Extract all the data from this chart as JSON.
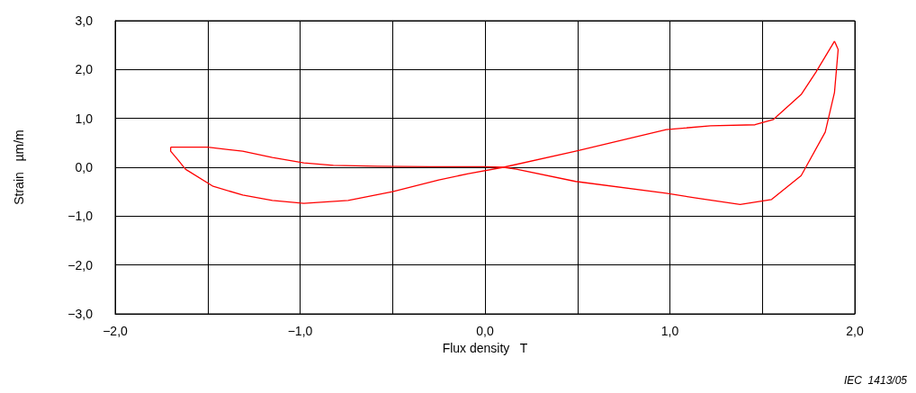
{
  "chart_data": {
    "type": "line",
    "xlabel": "Flux density   T",
    "ylabel": "Strain   µm/m",
    "annotations": [
      "IEC  1413/05"
    ],
    "xlim": [
      -2,
      2
    ],
    "xticks": [
      {
        "value": -2,
        "label": "−2,0"
      },
      {
        "value": -1.5,
        "label": null
      },
      {
        "value": -1,
        "label": "−1,0"
      },
      {
        "value": -0.5,
        "label": null
      },
      {
        "value": 0,
        "label": "0,0"
      },
      {
        "value": 0.5,
        "label": null
      },
      {
        "value": 1,
        "label": "1,0"
      },
      {
        "value": 1.5,
        "label": null
      },
      {
        "value": 2,
        "label": "2,0"
      }
    ],
    "ylim": [
      -3,
      3
    ],
    "yticks": [
      {
        "value": -3,
        "label": "−3,0"
      },
      {
        "value": -2,
        "label": "−2,0"
      },
      {
        "value": -1,
        "label": "−1,0"
      },
      {
        "value": 0,
        "label": "0,0"
      },
      {
        "value": 1,
        "label": "1,0"
      },
      {
        "value": 2,
        "label": "2,0"
      },
      {
        "value": 3,
        "label": "3,0"
      }
    ],
    "grid": true,
    "marker": "none",
    "line_style": "solid",
    "series": [
      {
        "color": "#ff0000",
        "x": [
          1.89,
          1.91
        ],
        "values": [
          2.58,
          2.41
        ]
      },
      {
        "color": "#ff0000",
        "x": [
          1.91,
          1.89,
          1.84,
          1.71,
          1.55,
          1.38,
          1.14,
          0.98,
          0.49,
          0.17,
          0.1,
          0.0,
          -0.3,
          -0.58,
          -0.82,
          -0.98,
          -1.15,
          -1.31,
          -1.5,
          -1.7
        ],
        "values": [
          2.41,
          1.53,
          0.72,
          -0.17,
          -0.66,
          -0.76,
          -0.63,
          -0.53,
          -0.29,
          -0.04,
          0.0,
          0.01,
          0.01,
          0.02,
          0.04,
          0.09,
          0.2,
          0.33,
          0.41,
          0.41
        ]
      },
      {
        "color": "#ff0000",
        "x": [
          -1.7,
          -1.7,
          -1.66,
          -1.62,
          -1.47,
          -1.31,
          -1.15,
          -0.98,
          -0.74,
          -0.5,
          -0.25,
          -0.09,
          0.1,
          0.49,
          0.98,
          1.22,
          1.46,
          1.56,
          1.71,
          1.79,
          1.89
        ],
        "values": [
          0.41,
          0.33,
          0.15,
          -0.04,
          -0.39,
          -0.57,
          -0.68,
          -0.74,
          -0.68,
          -0.5,
          -0.26,
          -0.13,
          0.0,
          0.33,
          0.77,
          0.85,
          0.87,
          0.98,
          1.49,
          1.95,
          2.58
        ]
      }
    ]
  }
}
